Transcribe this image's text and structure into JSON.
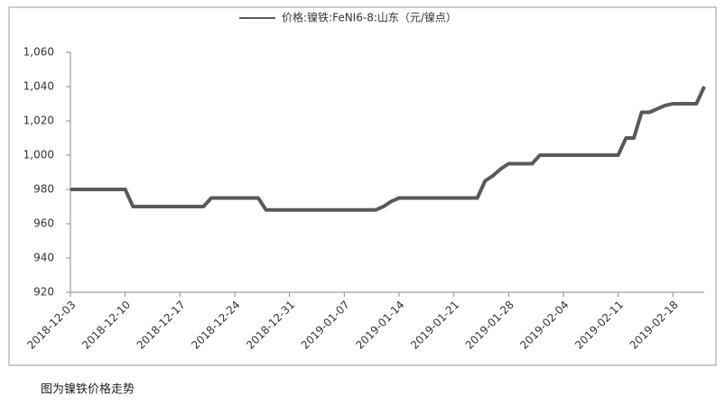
{
  "chart_data": {
    "type": "line",
    "x": [
      "2018-12-03",
      "2018-12-10",
      "2018-12-11",
      "2018-12-20",
      "2018-12-21",
      "2018-12-27",
      "2018-12-28",
      "2019-01-11",
      "2019-01-12",
      "2019-01-13",
      "2019-01-14",
      "2019-01-24",
      "2019-01-25",
      "2019-01-26",
      "2019-01-27",
      "2019-01-28",
      "2019-01-31",
      "2019-02-01",
      "2019-02-11",
      "2019-02-12",
      "2019-02-13",
      "2019-02-14",
      "2019-02-15",
      "2019-02-16",
      "2019-02-17",
      "2019-02-18",
      "2019-02-21",
      "2019-02-22"
    ],
    "series": [
      {
        "name": "价格:镍铁:FeNI6-8:山东（元/镍点）",
        "color": "#595959",
        "values": [
          980,
          980,
          970,
          970,
          975,
          975,
          968,
          968,
          970,
          973,
          975,
          975,
          985,
          988,
          992,
          995,
          995,
          1000,
          1000,
          1010,
          1010,
          1025,
          1025,
          1027,
          1029,
          1030,
          1030,
          1040
        ]
      }
    ],
    "xlim": [
      "2018-12-03",
      "2019-02-22"
    ],
    "xticks": [
      "2018-12-03",
      "2018-12-10",
      "2018-12-17",
      "2018-12-24",
      "2018-12-31",
      "2019-01-07",
      "2019-01-14",
      "2019-01-21",
      "2019-01-28",
      "2019-02-04",
      "2019-02-11",
      "2019-02-18"
    ],
    "ylim": [
      920,
      1060
    ],
    "yticks": [
      920,
      940,
      960,
      980,
      {
        "value": 1000,
        "label": "1,000"
      },
      {
        "value": 1020,
        "label": "1,020"
      },
      {
        "value": 1040,
        "label": "1,040"
      },
      {
        "value": 1060,
        "label": "1,060"
      }
    ],
    "grid": false,
    "legend": "top",
    "caption": "图为镍铁价格走势"
  }
}
